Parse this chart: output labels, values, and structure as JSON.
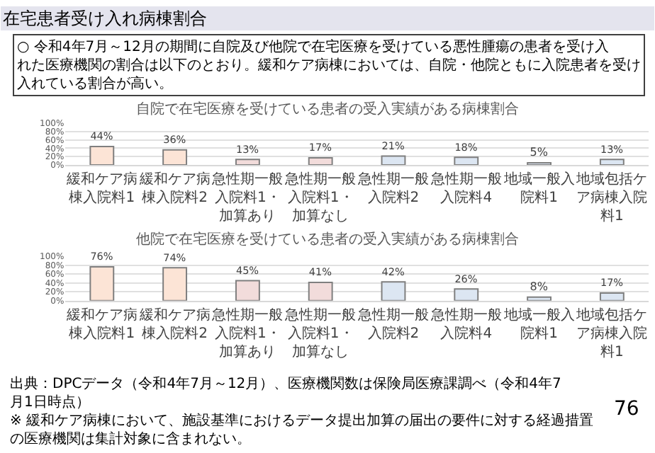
{
  "chart_data": [
    {
      "type": "bar",
      "title": "自院で在宅医療を受けている患者の受入実績がある病棟割合",
      "categories": [
        "緩和ケア病棟入院料1",
        "緩和ケア病棟入院料2",
        "急性期一般入院料1・加算あり",
        "急性期一般入院料1・加算なし",
        "急性期一般入院料2",
        "急性期一般入院料4",
        "地域一般入院料1",
        "地域包括ケア病棟入院料1"
      ],
      "values": [
        44,
        36,
        13,
        17,
        21,
        18,
        5,
        13
      ],
      "value_labels": [
        "44%",
        "36%",
        "13%",
        "17%",
        "21%",
        "18%",
        "5%",
        "13%"
      ],
      "colors": [
        "#fce4d6",
        "#fce4d6",
        "#f2dcdb",
        "#f2dcdb",
        "#dce6f2",
        "#dce6f2",
        "#dce6f2",
        "#dce6f2"
      ],
      "ylim": [
        0,
        100
      ],
      "yticks": [
        {
          "value": 0,
          "label": "0%"
        },
        {
          "value": 20,
          "label": "20%"
        },
        {
          "value": 40,
          "label": "40%"
        },
        {
          "value": 60,
          "label": "60%"
        },
        {
          "value": 80,
          "label": "80%"
        },
        {
          "value": 100,
          "label": "100%"
        }
      ],
      "grid": "y",
      "annotations": [
        "在宅患者受け入れ病棟割合",
        "○ 令和4年7月～12月の期間に自院及び他院で在宅医療を受けている悪性腫瘍の患者を受け入れた医療機関の割合は以下のとおり。緩和ケア病棟においては、自院・他院ともに入院患者を受け入れている割合が高い。"
      ]
    },
    {
      "type": "bar",
      "title": "他院で在宅医療を受けている患者の受入実績がある病棟割合",
      "categories": [
        "緩和ケア病棟入院料1",
        "緩和ケア病棟入院料2",
        "急性期一般入院料1・加算あり",
        "急性期一般入院料1・加算なし",
        "急性期一般入院料2",
        "急性期一般入院料4",
        "地域一般入院料1",
        "地域包括ケア病棟入院料1"
      ],
      "values": [
        76,
        74,
        45,
        41,
        42,
        26,
        8,
        17
      ],
      "value_labels": [
        "76%",
        "74%",
        "45%",
        "41%",
        "42%",
        "26%",
        "8%",
        "17%"
      ],
      "colors": [
        "#fce4d6",
        "#fce4d6",
        "#f2dcdb",
        "#f2dcdb",
        "#dce6f2",
        "#dce6f2",
        "#dce6f2",
        "#dce6f2"
      ],
      "ylim": [
        0,
        100
      ],
      "yticks": [
        {
          "value": 0,
          "label": "0%"
        },
        {
          "value": 20,
          "label": "20%"
        },
        {
          "value": 40,
          "label": "40%"
        },
        {
          "value": 60,
          "label": "60%"
        },
        {
          "value": 80,
          "label": "80%"
        },
        {
          "value": 100,
          "label": "100%"
        }
      ],
      "grid": "y",
      "annotations": [
        "出典：DPCデータ（令和4年7月～12月）、医療機関数は保険局医療課調べ（令和4年7月1日時点）",
        "※ 緩和ケア病棟において、施設基準におけるデータ提出加算の届出の要件に対する経過措置の医療機関は集計対象に含まれない。",
        "76"
      ]
    }
  ]
}
